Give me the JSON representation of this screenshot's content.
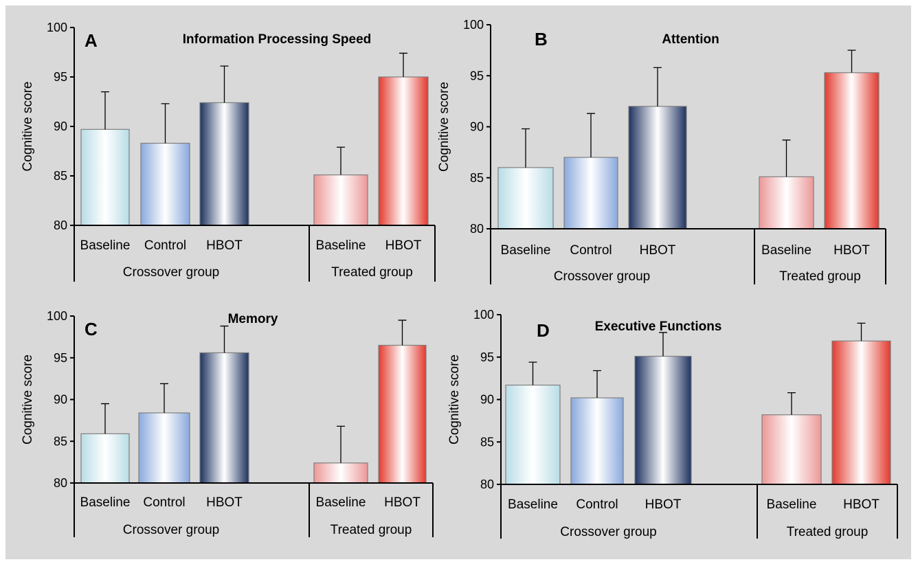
{
  "chart_data": [
    {
      "type": "bar",
      "panel": "A",
      "title": "Information Processing Speed",
      "ylabel": "Cognitive score",
      "ylim": [
        80,
        100
      ],
      "yticks": [
        80,
        85,
        90,
        95,
        100
      ],
      "groups": [
        {
          "label": "Crossover group",
          "categories": [
            "Baseline",
            "Control",
            "HBOT"
          ],
          "values": [
            89.7,
            88.3,
            92.4
          ],
          "errors": [
            3.8,
            4.0,
            3.7
          ]
        },
        {
          "label": "Treated group",
          "categories": [
            "Baseline",
            "HBOT"
          ],
          "values": [
            85.1,
            95.0
          ],
          "errors": [
            2.8,
            2.4
          ]
        }
      ]
    },
    {
      "type": "bar",
      "panel": "B",
      "title": "Attention",
      "ylabel": "Cognitive score",
      "ylim": [
        80,
        100
      ],
      "yticks": [
        80,
        85,
        90,
        95,
        100
      ],
      "groups": [
        {
          "label": "Crossover group",
          "categories": [
            "Baseline",
            "Control",
            "HBOT"
          ],
          "values": [
            86.0,
            87.0,
            92.0
          ],
          "errors": [
            3.8,
            4.3,
            3.8
          ]
        },
        {
          "label": "Treated group",
          "categories": [
            "Baseline",
            "HBOT"
          ],
          "values": [
            85.1,
            95.3
          ],
          "errors": [
            3.6,
            2.2
          ]
        }
      ]
    },
    {
      "type": "bar",
      "panel": "C",
      "title": "Memory",
      "ylabel": "Cognitive score",
      "ylim": [
        80,
        100
      ],
      "yticks": [
        80,
        85,
        90,
        95,
        100
      ],
      "groups": [
        {
          "label": "Crossover group",
          "categories": [
            "Baseline",
            "Control",
            "HBOT"
          ],
          "values": [
            85.9,
            88.4,
            95.6
          ],
          "errors": [
            3.6,
            3.5,
            3.2
          ]
        },
        {
          "label": "Treated group",
          "categories": [
            "Baseline",
            "HBOT"
          ],
          "values": [
            82.4,
            96.5
          ],
          "errors": [
            4.4,
            3.0
          ]
        }
      ]
    },
    {
      "type": "bar",
      "panel": "D",
      "title": "Executive Functions",
      "ylabel": "Cognitive score",
      "ylim": [
        80,
        100
      ],
      "yticks": [
        80,
        85,
        90,
        95,
        100
      ],
      "groups": [
        {
          "label": "Crossover group",
          "categories": [
            "Baseline",
            "Control",
            "HBOT"
          ],
          "values": [
            91.7,
            90.2,
            95.1
          ],
          "errors": [
            2.7,
            3.2,
            2.8
          ]
        },
        {
          "label": "Treated group",
          "categories": [
            "Baseline",
            "HBOT"
          ],
          "values": [
            88.2,
            96.9
          ],
          "errors": [
            2.6,
            2.1
          ]
        }
      ]
    }
  ],
  "colors": {
    "background": "#d9d9d9",
    "crossover_baseline": "#b9dde6",
    "crossover_control": "#8aa9dc",
    "crossover_hbot": "#1f3360",
    "treated_baseline": "#ec9898",
    "treated_hbot": "#e23a2e"
  }
}
